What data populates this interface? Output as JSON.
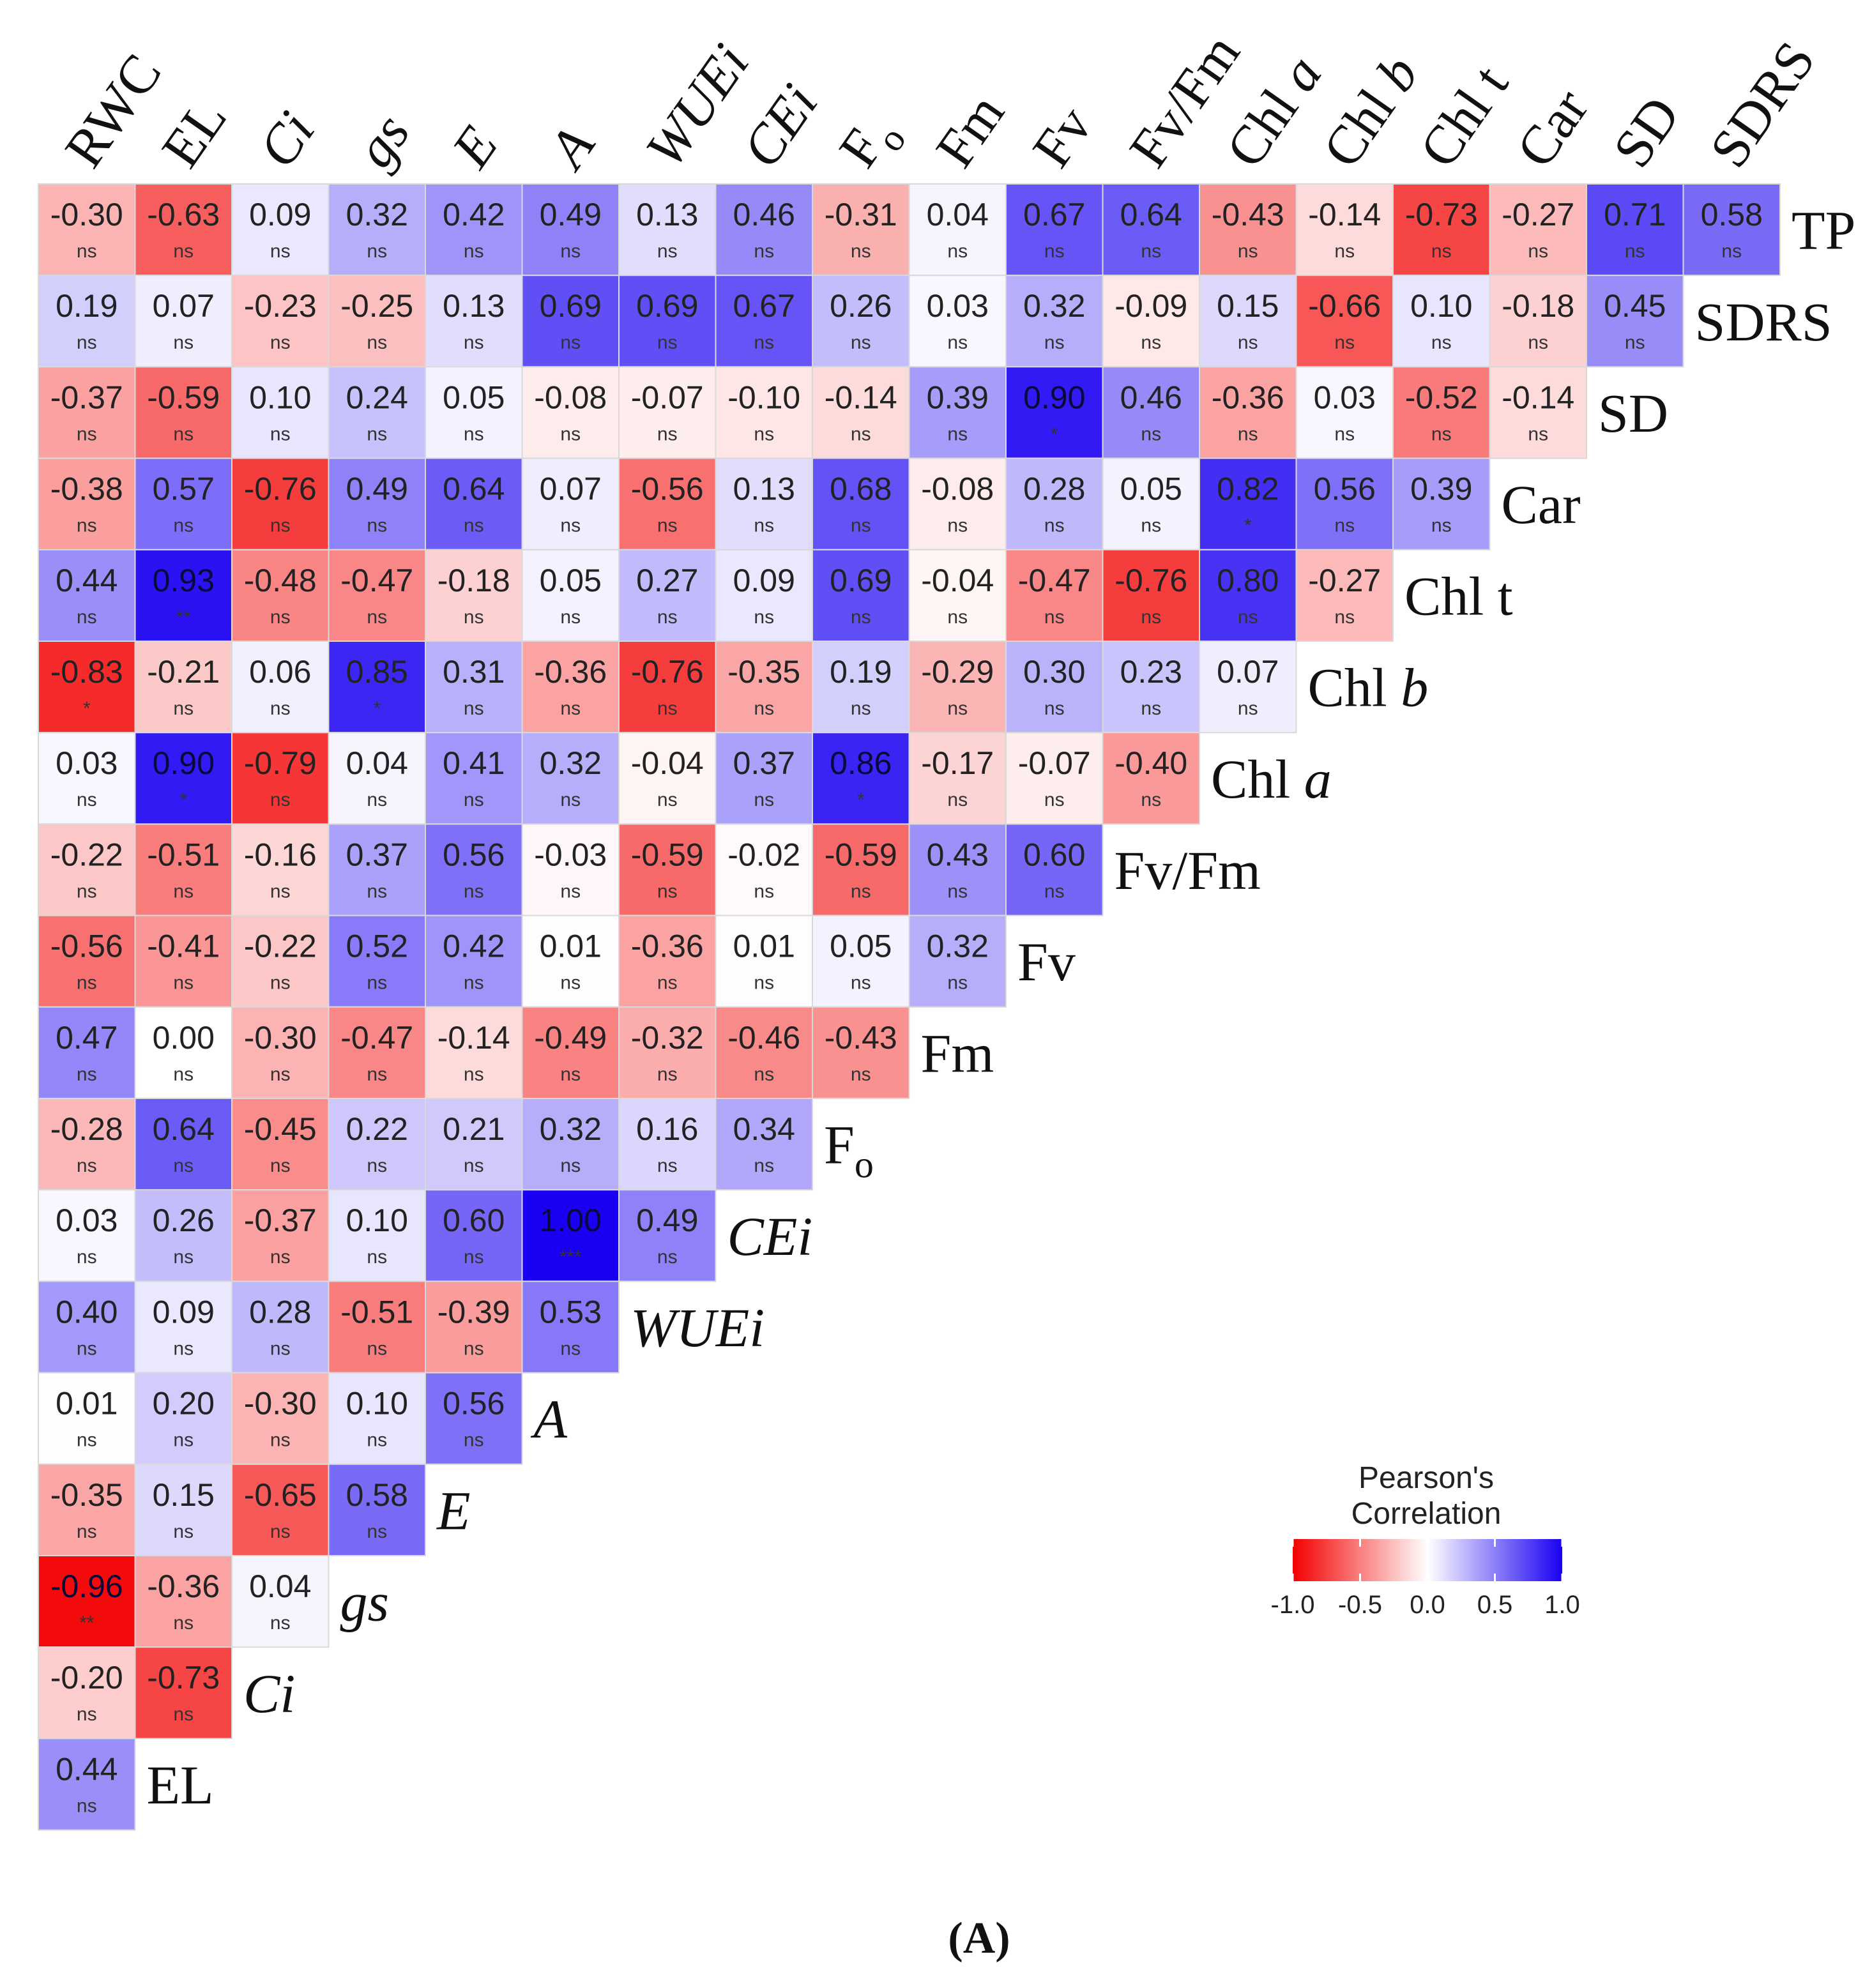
{
  "chart_data": {
    "type": "heatmap",
    "subtype": "correlogram (lower triangle)",
    "x_labels": [
      "RWC",
      "EL",
      "Ci",
      "gs",
      "E",
      "A",
      "WUEi",
      "CEi",
      "Fo",
      "Fm",
      "Fv",
      "Fv/Fm",
      "Chl a",
      "Chl b",
      "Chl t",
      "Car",
      "SD",
      "SDRS"
    ],
    "y_labels": [
      "TP",
      "SDRS",
      "SD",
      "Car",
      "Chl t",
      "Chl b",
      "Chl a",
      "Fv/Fm",
      "Fv",
      "Fm",
      "Fo",
      "CEi",
      "WUEi",
      "A",
      "E",
      "gs",
      "Ci",
      "EL"
    ],
    "italic_labels": [
      "Ci",
      "gs",
      "E",
      "A",
      "WUEi",
      "CEi",
      "Chl a",
      "Chl b"
    ],
    "values": [
      [
        -0.3,
        -0.63,
        0.09,
        0.32,
        0.42,
        0.49,
        0.13,
        0.46,
        -0.31,
        0.04,
        0.67,
        0.64,
        -0.43,
        -0.14,
        -0.73,
        -0.27,
        0.71,
        0.58
      ],
      [
        0.19,
        0.07,
        -0.23,
        -0.25,
        0.13,
        0.69,
        0.69,
        0.67,
        0.26,
        0.03,
        0.32,
        -0.09,
        0.15,
        -0.66,
        0.1,
        -0.18,
        0.45
      ],
      [
        -0.37,
        -0.59,
        0.1,
        0.24,
        0.05,
        -0.08,
        -0.07,
        -0.1,
        -0.14,
        0.39,
        0.9,
        0.46,
        -0.36,
        0.03,
        -0.52,
        -0.14
      ],
      [
        -0.38,
        0.57,
        -0.76,
        0.49,
        0.64,
        0.07,
        -0.56,
        0.13,
        0.68,
        -0.08,
        0.28,
        0.05,
        0.82,
        0.56,
        0.39
      ],
      [
        0.44,
        0.93,
        -0.48,
        -0.47,
        -0.18,
        0.05,
        0.27,
        0.09,
        0.69,
        -0.04,
        -0.47,
        -0.76,
        0.8,
        -0.27
      ],
      [
        -0.83,
        -0.21,
        0.06,
        0.85,
        0.31,
        -0.36,
        -0.76,
        -0.35,
        0.19,
        -0.29,
        0.3,
        0.23,
        0.07
      ],
      [
        0.03,
        0.9,
        -0.79,
        0.04,
        0.41,
        0.32,
        -0.04,
        0.37,
        0.86,
        -0.17,
        -0.07,
        -0.4
      ],
      [
        -0.22,
        -0.51,
        -0.16,
        0.37,
        0.56,
        -0.03,
        -0.59,
        -0.02,
        -0.59,
        0.43,
        0.6
      ],
      [
        -0.56,
        -0.41,
        -0.22,
        0.52,
        0.42,
        0.01,
        -0.36,
        0.01,
        0.05,
        0.32
      ],
      [
        0.47,
        0.0,
        -0.3,
        -0.47,
        -0.14,
        -0.49,
        -0.32,
        -0.46,
        -0.43
      ],
      [
        -0.28,
        0.64,
        -0.45,
        0.22,
        0.21,
        0.32,
        0.16,
        0.34
      ],
      [
        0.03,
        0.26,
        -0.37,
        0.1,
        0.6,
        1.0,
        0.49
      ],
      [
        0.4,
        0.09,
        0.28,
        -0.51,
        -0.39,
        0.53
      ],
      [
        0.01,
        0.2,
        -0.3,
        0.1,
        0.56
      ],
      [
        -0.35,
        0.15,
        -0.65,
        0.58
      ],
      [
        -0.96,
        -0.36,
        0.04
      ],
      [
        -0.2,
        -0.73
      ],
      [
        0.44
      ]
    ],
    "significance": [
      [
        "ns",
        "ns",
        "ns",
        "ns",
        "ns",
        "ns",
        "ns",
        "ns",
        "ns",
        "ns",
        "ns",
        "ns",
        "ns",
        "ns",
        "ns",
        "ns",
        "ns",
        "ns"
      ],
      [
        "ns",
        "ns",
        "ns",
        "ns",
        "ns",
        "ns",
        "ns",
        "ns",
        "ns",
        "ns",
        "ns",
        "ns",
        "ns",
        "ns",
        "ns",
        "ns",
        "ns"
      ],
      [
        "ns",
        "ns",
        "ns",
        "ns",
        "ns",
        "ns",
        "ns",
        "ns",
        "ns",
        "ns",
        "*",
        "ns",
        "ns",
        "ns",
        "ns",
        "ns"
      ],
      [
        "ns",
        "ns",
        "ns",
        "ns",
        "ns",
        "ns",
        "ns",
        "ns",
        "ns",
        "ns",
        "ns",
        "ns",
        "*",
        "ns",
        "ns"
      ],
      [
        "ns",
        "**",
        "ns",
        "ns",
        "ns",
        "ns",
        "ns",
        "ns",
        "ns",
        "ns",
        "ns",
        "ns",
        "ns",
        "ns"
      ],
      [
        "*",
        "ns",
        "ns",
        "*",
        "ns",
        "ns",
        "ns",
        "ns",
        "ns",
        "ns",
        "ns",
        "ns",
        "ns"
      ],
      [
        "ns",
        "*",
        "ns",
        "ns",
        "ns",
        "ns",
        "ns",
        "ns",
        "*",
        "ns",
        "ns",
        "ns"
      ],
      [
        "ns",
        "ns",
        "ns",
        "ns",
        "ns",
        "ns",
        "ns",
        "ns",
        "ns",
        "ns",
        "ns"
      ],
      [
        "ns",
        "ns",
        "ns",
        "ns",
        "ns",
        "ns",
        "ns",
        "ns",
        "ns",
        "ns"
      ],
      [
        "ns",
        "ns",
        "ns",
        "ns",
        "ns",
        "ns",
        "ns",
        "ns",
        "ns"
      ],
      [
        "ns",
        "ns",
        "ns",
        "ns",
        "ns",
        "ns",
        "ns",
        "ns"
      ],
      [
        "ns",
        "ns",
        "ns",
        "ns",
        "ns",
        "***",
        "ns"
      ],
      [
        "ns",
        "ns",
        "ns",
        "ns",
        "ns",
        "ns"
      ],
      [
        "ns",
        "ns",
        "ns",
        "ns",
        "ns"
      ],
      [
        "ns",
        "ns",
        "ns",
        "ns"
      ],
      [
        "**",
        "ns",
        "ns"
      ],
      [
        "ns",
        "ns"
      ],
      [
        "ns"
      ]
    ],
    "legend": {
      "title_line1": "Pearson's",
      "title_line2": "Correlation",
      "ticks": [
        "-1.0",
        "-0.5",
        "0.0",
        "0.5",
        "1.0"
      ],
      "range": [
        -1,
        1
      ],
      "placement": "lower-right"
    },
    "colors": {
      "negative": "#f30000",
      "zero": "#ffffff",
      "positive": "#1a00f2",
      "cell_border": "#d9d9d9"
    },
    "caption": "(A)"
  }
}
